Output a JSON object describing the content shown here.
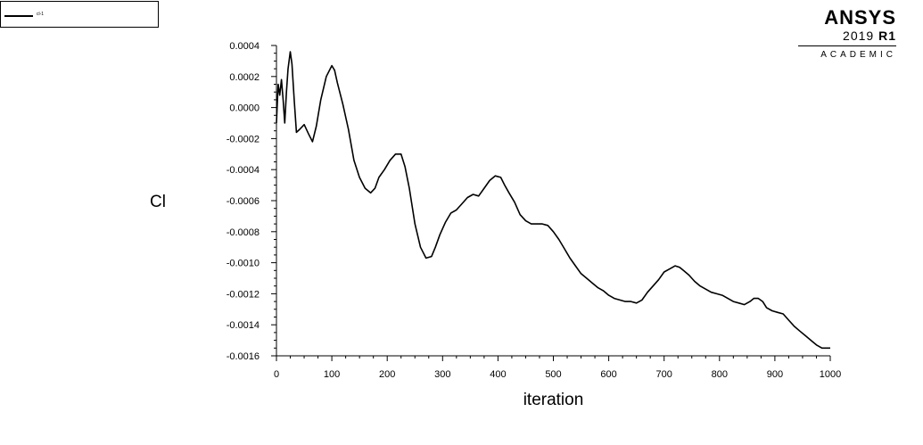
{
  "legend": {
    "label": "cl-1"
  },
  "brand": {
    "name": "ANSYS",
    "version": "2019",
    "release": "R1",
    "edition": "ACADEMIC"
  },
  "chart_data": {
    "type": "line",
    "title": "",
    "xlabel": "iteration",
    "ylabel": "Cl",
    "xlim": [
      0,
      1000
    ],
    "ylim": [
      -0.0016,
      0.0004
    ],
    "x_ticks": [
      0,
      100,
      200,
      300,
      400,
      500,
      600,
      700,
      800,
      900,
      1000
    ],
    "y_ticks": [
      "0.0004",
      "0.0002",
      "0.0000",
      "-0.0002",
      "-0.0004",
      "-0.0006",
      "-0.0008",
      "-0.0010",
      "-0.0012",
      "-0.0014",
      "-0.0016"
    ],
    "grid": false,
    "legend_position": "top-left",
    "series": [
      {
        "name": "cl-1",
        "color": "#000000",
        "x": [
          0,
          3,
          6,
          9,
          12,
          15,
          18,
          21,
          25,
          28,
          32,
          36,
          42,
          50,
          58,
          65,
          72,
          80,
          90,
          100,
          105,
          110,
          120,
          130,
          140,
          150,
          160,
          170,
          178,
          185,
          195,
          205,
          215,
          225,
          232,
          240,
          250,
          260,
          270,
          280,
          287,
          295,
          305,
          315,
          325,
          335,
          345,
          355,
          365,
          375,
          385,
          395,
          405,
          412,
          420,
          430,
          440,
          450,
          460,
          470,
          480,
          490,
          500,
          510,
          520,
          530,
          540,
          550,
          560,
          570,
          580,
          590,
          600,
          610,
          620,
          630,
          640,
          650,
          660,
          670,
          680,
          690,
          700,
          710,
          720,
          728,
          735,
          745,
          755,
          765,
          775,
          785,
          795,
          805,
          815,
          825,
          835,
          845,
          855,
          862,
          870,
          878,
          885,
          895,
          905,
          915,
          925,
          935,
          945,
          955,
          965,
          975,
          985,
          995,
          1000
        ],
        "y": [
          -0.0001,
          0.00015,
          8e-05,
          0.00018,
          5e-05,
          -0.0001,
          0.0001,
          0.00025,
          0.00036,
          0.00028,
          5e-05,
          -0.00016,
          -0.00014,
          -0.00011,
          -0.00017,
          -0.00022,
          -0.00012,
          5e-05,
          0.0002,
          0.00027,
          0.00024,
          0.00016,
          2e-05,
          -0.00014,
          -0.00034,
          -0.00045,
          -0.00052,
          -0.00055,
          -0.00052,
          -0.00045,
          -0.0004,
          -0.00034,
          -0.0003,
          -0.0003,
          -0.00038,
          -0.00052,
          -0.00075,
          -0.0009,
          -0.00097,
          -0.00096,
          -0.0009,
          -0.00082,
          -0.00074,
          -0.00068,
          -0.00066,
          -0.00062,
          -0.00058,
          -0.00056,
          -0.00057,
          -0.00052,
          -0.00047,
          -0.00044,
          -0.00045,
          -0.0005,
          -0.00055,
          -0.00061,
          -0.00069,
          -0.00073,
          -0.00075,
          -0.00075,
          -0.00075,
          -0.00076,
          -0.0008,
          -0.00085,
          -0.00091,
          -0.00097,
          -0.00102,
          -0.00107,
          -0.0011,
          -0.00113,
          -0.00116,
          -0.00118,
          -0.00121,
          -0.00123,
          -0.00124,
          -0.00125,
          -0.00125,
          -0.00126,
          -0.00124,
          -0.00119,
          -0.00115,
          -0.00111,
          -0.00106,
          -0.00104,
          -0.00102,
          -0.00103,
          -0.00105,
          -0.00108,
          -0.00112,
          -0.00115,
          -0.00117,
          -0.00119,
          -0.0012,
          -0.00121,
          -0.00123,
          -0.00125,
          -0.00126,
          -0.00127,
          -0.00125,
          -0.00123,
          -0.00123,
          -0.00125,
          -0.00129,
          -0.00131,
          -0.00132,
          -0.00133,
          -0.00137,
          -0.00141,
          -0.00144,
          -0.00147,
          -0.0015,
          -0.00153,
          -0.00155,
          -0.00155,
          -0.00155
        ]
      }
    ]
  }
}
